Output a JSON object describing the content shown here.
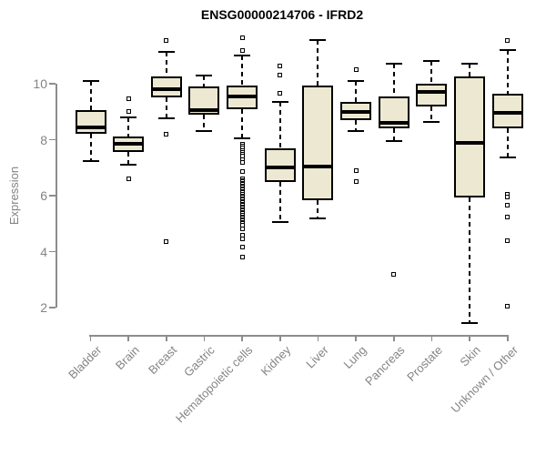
{
  "page": {
    "background": "#ffffff"
  },
  "chart_data": {
    "type": "boxplot",
    "title": "ENSG00000214706 - IFRD2",
    "ylabel": "Expression",
    "xlabel": "",
    "grid": false,
    "legend": "none",
    "y_axis": {
      "ticks": [
        10,
        8,
        6,
        4,
        2
      ],
      "axis_range": [
        2,
        10
      ]
    },
    "colors": {
      "box_fill": "#EDE8D1",
      "box_border": "#000000",
      "median": "#000000",
      "whisker": "#000000",
      "outlier": "#000000",
      "axis": "#8C8C8C",
      "tick_label": "#848484",
      "title": "#000000"
    },
    "categories": [
      "Bladder",
      "Brain",
      "Breast",
      "Gastric",
      "Hematopoietic cells",
      "Kidney",
      "Liver",
      "Lung",
      "Pancreas",
      "Prostate",
      "Skin",
      "Unknown / Other"
    ],
    "series": [
      {
        "category": "Bladder",
        "whisker_low": 7.25,
        "q1": 8.2,
        "median": 8.45,
        "q3": 9.05,
        "whisker_high": 10.1,
        "outliers": []
      },
      {
        "category": "Brain",
        "whisker_low": 7.1,
        "q1": 7.55,
        "median": 7.85,
        "q3": 8.1,
        "whisker_high": 8.8,
        "outliers": [
          9.45,
          9.0,
          6.6
        ]
      },
      {
        "category": "Breast",
        "whisker_low": 8.75,
        "q1": 9.5,
        "median": 9.8,
        "q3": 10.25,
        "whisker_high": 11.15,
        "outliers": [
          11.55,
          8.2,
          4.35
        ]
      },
      {
        "category": "Gastric",
        "whisker_low": 8.3,
        "q1": 8.9,
        "median": 9.05,
        "q3": 9.9,
        "whisker_high": 10.3,
        "outliers": []
      },
      {
        "category": "Hematopoietic cells",
        "whisker_low": 8.05,
        "q1": 9.1,
        "median": 9.55,
        "q3": 9.95,
        "whisker_high": 11.0,
        "outliers": [
          11.65,
          11.2,
          7.85,
          7.78,
          7.7,
          7.62,
          7.55,
          7.48,
          7.4,
          7.3,
          7.2,
          6.85,
          6.6,
          6.55,
          6.5,
          6.45,
          6.4,
          6.35,
          6.3,
          6.25,
          6.2,
          6.15,
          6.1,
          6.05,
          6.0,
          5.95,
          5.9,
          5.85,
          5.8,
          5.75,
          5.7,
          5.65,
          5.6,
          5.55,
          5.5,
          5.45,
          5.4,
          5.35,
          5.3,
          5.25,
          5.2,
          5.15,
          5.1,
          5.05,
          5.0,
          4.95,
          4.8,
          4.6,
          4.45,
          4.15,
          3.8
        ]
      },
      {
        "category": "Kidney",
        "whisker_low": 5.05,
        "q1": 6.5,
        "median": 7.0,
        "q3": 7.7,
        "whisker_high": 9.35,
        "outliers": [
          10.65,
          10.3,
          9.65
        ]
      },
      {
        "category": "Liver",
        "whisker_low": 5.2,
        "q1": 5.85,
        "median": 7.05,
        "q3": 9.95,
        "whisker_high": 11.55,
        "outliers": []
      },
      {
        "category": "Lung",
        "whisker_low": 8.3,
        "q1": 8.7,
        "median": 9.0,
        "q3": 9.35,
        "whisker_high": 10.1,
        "outliers": [
          10.5,
          6.9,
          6.5
        ]
      },
      {
        "category": "Pancreas",
        "whisker_low": 7.95,
        "q1": 8.4,
        "median": 8.6,
        "q3": 9.55,
        "whisker_high": 10.7,
        "outliers": [
          3.2
        ]
      },
      {
        "category": "Prostate",
        "whisker_low": 8.65,
        "q1": 9.2,
        "median": 9.7,
        "q3": 10.0,
        "whisker_high": 10.8,
        "outliers": []
      },
      {
        "category": "Skin",
        "whisker_low": 1.45,
        "q1": 5.95,
        "median": 7.9,
        "q3": 10.25,
        "whisker_high": 10.7,
        "outliers": []
      },
      {
        "category": "Unknown / Other",
        "whisker_low": 7.35,
        "q1": 8.4,
        "median": 8.95,
        "q3": 9.65,
        "whisker_high": 11.2,
        "outliers": [
          11.55,
          6.05,
          5.95,
          5.65,
          5.25,
          4.4,
          2.05
        ]
      }
    ]
  }
}
